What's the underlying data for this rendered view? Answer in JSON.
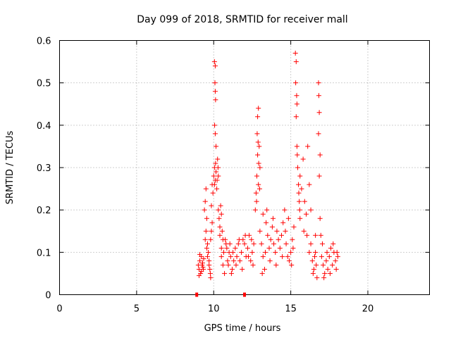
{
  "chart_data": {
    "type": "scatter",
    "title": "Day 099 of 2018, SRMTID for receiver mall",
    "xlabel": "GPS time / hours",
    "ylabel": "SRMTID / TECUs",
    "xlim": [
      0,
      24
    ],
    "ylim": [
      0,
      0.6
    ],
    "xticks": [
      0,
      5,
      10,
      15,
      20
    ],
    "yticks": [
      0,
      0.1,
      0.2,
      0.3,
      0.4,
      0.5,
      0.6
    ],
    "xtick_labels": [
      "0",
      "5",
      "10",
      "15",
      "20"
    ],
    "ytick_labels": [
      "0",
      "0.1",
      "0.2",
      "0.3",
      "0.4",
      "0.5",
      "0.6"
    ],
    "grid": true,
    "marker": "plus",
    "color": "#ff0000",
    "series": [
      {
        "name": "SRMTID",
        "points": [
          [
            8.9,
            0.0
          ],
          [
            12.0,
            0.0
          ],
          [
            9.0,
            0.07
          ],
          [
            9.05,
            0.06
          ],
          [
            9.1,
            0.08
          ],
          [
            9.15,
            0.05
          ],
          [
            9.2,
            0.09
          ],
          [
            9.25,
            0.07
          ],
          [
            9.3,
            0.065
          ],
          [
            9.35,
            0.085
          ],
          [
            9.05,
            0.045
          ],
          [
            9.1,
            0.095
          ],
          [
            9.2,
            0.055
          ],
          [
            9.28,
            0.075
          ],
          [
            9.33,
            0.06
          ],
          [
            9.4,
            0.2
          ],
          [
            9.45,
            0.22
          ],
          [
            9.5,
            0.25
          ],
          [
            9.55,
            0.18
          ],
          [
            9.5,
            0.15
          ],
          [
            9.6,
            0.12
          ],
          [
            9.65,
            0.1
          ],
          [
            9.7,
            0.08
          ],
          [
            9.75,
            0.06
          ],
          [
            9.8,
            0.04
          ],
          [
            9.45,
            0.13
          ],
          [
            9.55,
            0.11
          ],
          [
            9.6,
            0.09
          ],
          [
            9.7,
            0.07
          ],
          [
            9.78,
            0.05
          ],
          [
            9.8,
            0.13
          ],
          [
            9.85,
            0.15
          ],
          [
            9.9,
            0.17
          ],
          [
            9.85,
            0.21
          ],
          [
            9.95,
            0.24
          ],
          [
            9.9,
            0.26
          ],
          [
            10.0,
            0.28
          ],
          [
            10.05,
            0.3
          ],
          [
            10.1,
            0.27
          ],
          [
            10.15,
            0.29
          ],
          [
            10.2,
            0.25
          ],
          [
            10.25,
            0.32
          ],
          [
            10.3,
            0.28
          ],
          [
            10.05,
            0.26
          ],
          [
            10.12,
            0.31
          ],
          [
            10.22,
            0.27
          ],
          [
            10.28,
            0.3
          ],
          [
            10.05,
            0.55
          ],
          [
            10.1,
            0.54
          ],
          [
            10.08,
            0.5
          ],
          [
            10.1,
            0.48
          ],
          [
            10.12,
            0.46
          ],
          [
            10.06,
            0.4
          ],
          [
            10.1,
            0.38
          ],
          [
            10.15,
            0.35
          ],
          [
            10.3,
            0.2
          ],
          [
            10.35,
            0.18
          ],
          [
            10.4,
            0.16
          ],
          [
            10.45,
            0.21
          ],
          [
            10.5,
            0.19
          ],
          [
            10.4,
            0.14
          ],
          [
            10.55,
            0.15
          ],
          [
            10.6,
            0.13
          ],
          [
            10.5,
            0.11
          ],
          [
            10.5,
            0.09
          ],
          [
            10.6,
            0.07
          ],
          [
            10.7,
            0.05
          ],
          [
            10.65,
            0.1
          ],
          [
            10.8,
            0.12
          ],
          [
            10.9,
            0.08
          ],
          [
            11.0,
            0.1
          ],
          [
            11.1,
            0.09
          ],
          [
            11.2,
            0.06
          ],
          [
            11.3,
            0.08
          ],
          [
            10.75,
            0.13
          ],
          [
            10.85,
            0.11
          ],
          [
            10.95,
            0.07
          ],
          [
            11.05,
            0.12
          ],
          [
            11.15,
            0.05
          ],
          [
            11.25,
            0.1
          ],
          [
            11.4,
            0.11
          ],
          [
            11.5,
            0.09
          ],
          [
            11.6,
            0.12
          ],
          [
            11.7,
            0.08
          ],
          [
            11.8,
            0.1
          ],
          [
            11.9,
            0.13
          ],
          [
            12.0,
            0.12
          ],
          [
            12.1,
            0.09
          ],
          [
            12.2,
            0.11
          ],
          [
            12.3,
            0.14
          ],
          [
            12.4,
            0.08
          ],
          [
            12.5,
            0.1
          ],
          [
            12.6,
            0.12
          ],
          [
            11.45,
            0.07
          ],
          [
            11.65,
            0.13
          ],
          [
            11.85,
            0.06
          ],
          [
            12.05,
            0.14
          ],
          [
            12.25,
            0.09
          ],
          [
            12.45,
            0.13
          ],
          [
            12.55,
            0.07
          ],
          [
            12.7,
            0.2
          ],
          [
            12.75,
            0.24
          ],
          [
            12.8,
            0.28
          ],
          [
            12.85,
            0.33
          ],
          [
            12.82,
            0.38
          ],
          [
            12.85,
            0.42
          ],
          [
            12.9,
            0.44
          ],
          [
            12.95,
            0.35
          ],
          [
            13.0,
            0.3
          ],
          [
            12.9,
            0.26
          ],
          [
            12.78,
            0.22
          ],
          [
            12.88,
            0.36
          ],
          [
            12.92,
            0.31
          ],
          [
            12.98,
            0.25
          ],
          [
            13.0,
            0.15
          ],
          [
            13.1,
            0.12
          ],
          [
            13.2,
            0.09
          ],
          [
            13.3,
            0.06
          ],
          [
            13.2,
            0.19
          ],
          [
            13.4,
            0.17
          ],
          [
            13.5,
            0.14
          ],
          [
            13.6,
            0.11
          ],
          [
            13.7,
            0.13
          ],
          [
            13.8,
            0.16
          ],
          [
            13.9,
            0.12
          ],
          [
            14.0,
            0.1
          ],
          [
            14.1,
            0.15
          ],
          [
            14.2,
            0.13
          ],
          [
            13.15,
            0.05
          ],
          [
            13.35,
            0.1
          ],
          [
            13.45,
            0.2
          ],
          [
            13.65,
            0.08
          ],
          [
            13.85,
            0.18
          ],
          [
            14.05,
            0.07
          ],
          [
            14.3,
            0.11
          ],
          [
            14.4,
            0.14
          ],
          [
            14.5,
            0.17
          ],
          [
            14.6,
            0.2
          ],
          [
            14.7,
            0.12
          ],
          [
            14.8,
            0.09
          ],
          [
            14.9,
            0.08
          ],
          [
            15.0,
            0.1
          ],
          [
            15.1,
            0.13
          ],
          [
            15.2,
            0.16
          ],
          [
            14.45,
            0.09
          ],
          [
            14.65,
            0.15
          ],
          [
            14.85,
            0.18
          ],
          [
            15.05,
            0.07
          ],
          [
            15.15,
            0.11
          ],
          [
            15.3,
            0.57
          ],
          [
            15.35,
            0.55
          ],
          [
            15.32,
            0.5
          ],
          [
            15.38,
            0.47
          ],
          [
            15.4,
            0.45
          ],
          [
            15.35,
            0.42
          ],
          [
            15.4,
            0.35
          ],
          [
            15.45,
            0.3
          ],
          [
            15.5,
            0.26
          ],
          [
            15.55,
            0.22
          ],
          [
            15.6,
            0.18
          ],
          [
            15.42,
            0.33
          ],
          [
            15.52,
            0.24
          ],
          [
            15.58,
            0.2
          ],
          [
            15.6,
            0.28
          ],
          [
            15.7,
            0.25
          ],
          [
            15.8,
            0.32
          ],
          [
            15.9,
            0.22
          ],
          [
            16.0,
            0.19
          ],
          [
            16.1,
            0.35
          ],
          [
            16.2,
            0.26
          ],
          [
            16.3,
            0.2
          ],
          [
            15.85,
            0.15
          ],
          [
            16.05,
            0.14
          ],
          [
            16.2,
            0.1
          ],
          [
            16.3,
            0.12
          ],
          [
            16.4,
            0.08
          ],
          [
            16.5,
            0.06
          ],
          [
            16.6,
            0.1
          ],
          [
            16.7,
            0.04
          ],
          [
            16.6,
            0.14
          ],
          [
            16.45,
            0.05
          ],
          [
            16.55,
            0.09
          ],
          [
            16.65,
            0.07
          ],
          [
            16.8,
            0.5
          ],
          [
            16.82,
            0.47
          ],
          [
            16.85,
            0.43
          ],
          [
            16.8,
            0.38
          ],
          [
            16.9,
            0.33
          ],
          [
            16.85,
            0.28
          ],
          [
            16.9,
            0.18
          ],
          [
            16.95,
            0.14
          ],
          [
            17.0,
            0.09
          ],
          [
            17.1,
            0.07
          ],
          [
            17.2,
            0.05
          ],
          [
            17.3,
            0.08
          ],
          [
            17.4,
            0.06
          ],
          [
            17.5,
            0.09
          ],
          [
            17.6,
            0.11
          ],
          [
            17.7,
            0.07
          ],
          [
            17.8,
            0.1
          ],
          [
            17.9,
            0.08
          ],
          [
            18.0,
            0.1
          ],
          [
            18.05,
            0.09
          ],
          [
            17.05,
            0.12
          ],
          [
            17.15,
            0.04
          ],
          [
            17.35,
            0.1
          ],
          [
            17.55,
            0.05
          ],
          [
            17.75,
            0.12
          ],
          [
            17.95,
            0.06
          ]
        ]
      }
    ]
  }
}
